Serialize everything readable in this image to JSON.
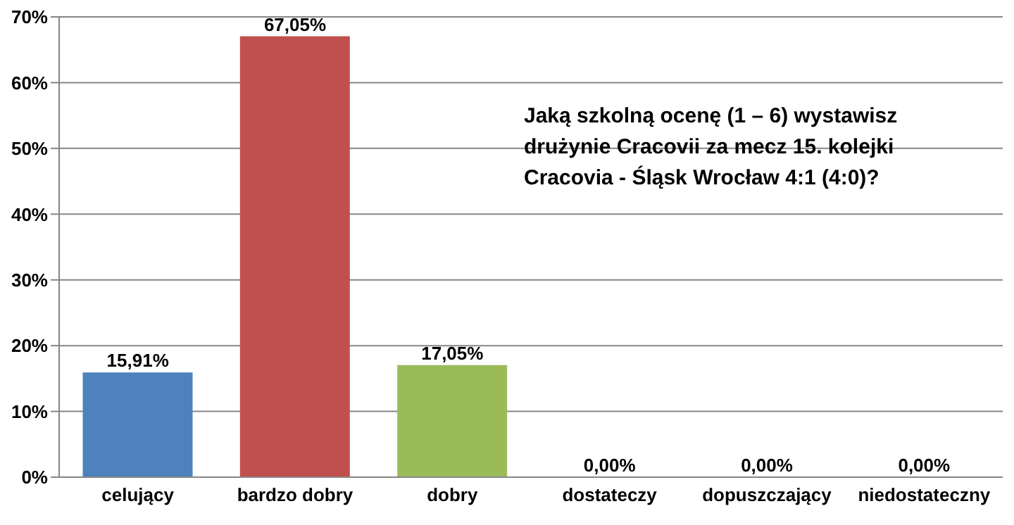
{
  "chart_data": {
    "type": "bar",
    "title": "Jaką szkolną ocenę (1 – 6) wystawisz drużynie Cracovii za mecz 15. kolejki Cracovia - Śląsk Wrocław 4:1 (4:0)?",
    "categories": [
      "celujący",
      "bardzo dobry",
      "dobry",
      "dostateczy",
      "dopuszczający",
      "niedostateczny"
    ],
    "values": [
      15.91,
      67.05,
      17.05,
      0,
      0,
      0
    ],
    "colors": [
      "#4f81bd",
      "#c0504d",
      "#9bbb59",
      "#8064a2",
      "#4bacc6",
      "#f79646"
    ],
    "value_labels": [
      "15,91%",
      "67,05%",
      "17,05%",
      "0,00%",
      "0,00%",
      "0,00%"
    ],
    "ylim": [
      0,
      70
    ],
    "yticks": [
      {
        "value": 0,
        "label": "0%"
      },
      {
        "value": 10,
        "label": "10%"
      },
      {
        "value": 20,
        "label": "20%"
      },
      {
        "value": 30,
        "label": "30%"
      },
      {
        "value": 40,
        "label": "40%"
      },
      {
        "value": 50,
        "label": "50%"
      },
      {
        "value": 60,
        "label": "60%"
      },
      {
        "value": 70,
        "label": "70%"
      }
    ],
    "grid": "y",
    "legend": false
  }
}
